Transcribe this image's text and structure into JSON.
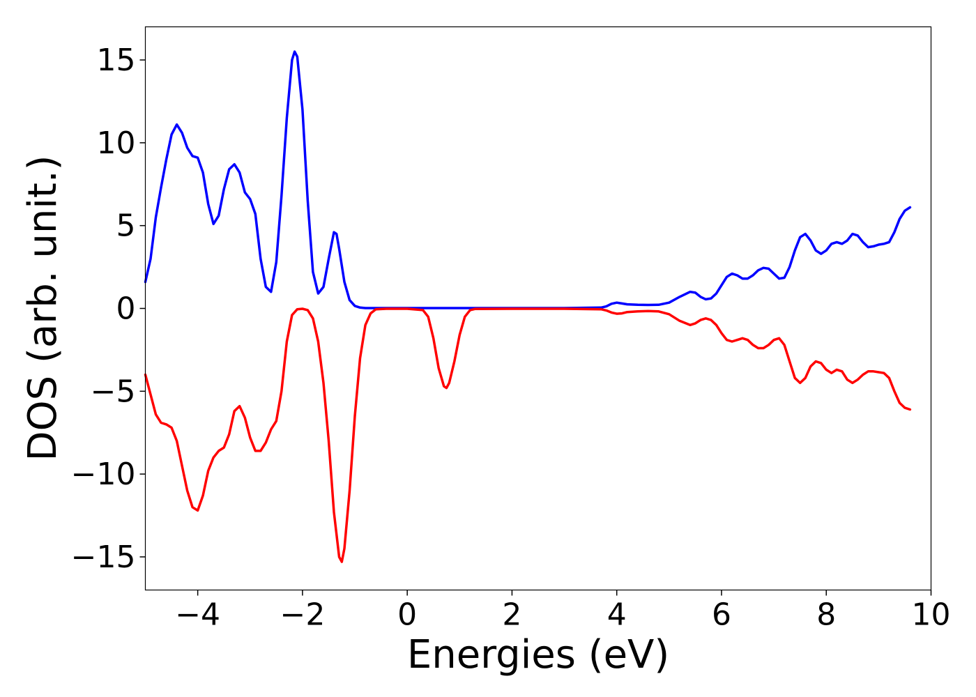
{
  "chart_data": {
    "type": "line",
    "title": "",
    "xlabel": "Energies (eV)",
    "ylabel": "DOS (arb. unit.)",
    "xlim": [
      -5,
      10
    ],
    "ylim": [
      -17,
      17
    ],
    "xticks": [
      -4,
      -2,
      0,
      2,
      4,
      6,
      8,
      10
    ],
    "xtick_labels": [
      "−4",
      "−2",
      "0",
      "2",
      "4",
      "6",
      "8",
      "10"
    ],
    "yticks": [
      -15,
      -10,
      -5,
      0,
      5,
      10,
      15
    ],
    "ytick_labels": [
      "−15",
      "−10",
      "−5",
      "0",
      "5",
      "10",
      "15"
    ],
    "grid": false,
    "legend": "none",
    "series": [
      {
        "color": "#0000ff",
        "points": [
          [
            -5.0,
            1.6
          ],
          [
            -4.9,
            3.0
          ],
          [
            -4.8,
            5.5
          ],
          [
            -4.7,
            7.3
          ],
          [
            -4.6,
            9.0
          ],
          [
            -4.5,
            10.5
          ],
          [
            -4.4,
            11.1
          ],
          [
            -4.3,
            10.6
          ],
          [
            -4.2,
            9.7
          ],
          [
            -4.1,
            9.2
          ],
          [
            -4.0,
            9.1
          ],
          [
            -3.9,
            8.2
          ],
          [
            -3.8,
            6.3
          ],
          [
            -3.7,
            5.1
          ],
          [
            -3.6,
            5.6
          ],
          [
            -3.5,
            7.2
          ],
          [
            -3.4,
            8.4
          ],
          [
            -3.3,
            8.7
          ],
          [
            -3.2,
            8.2
          ],
          [
            -3.1,
            7.0
          ],
          [
            -3.0,
            6.6
          ],
          [
            -2.9,
            5.7
          ],
          [
            -2.8,
            3.0
          ],
          [
            -2.7,
            1.3
          ],
          [
            -2.6,
            1.0
          ],
          [
            -2.5,
            2.8
          ],
          [
            -2.4,
            6.8
          ],
          [
            -2.3,
            11.5
          ],
          [
            -2.2,
            15.0
          ],
          [
            -2.15,
            15.5
          ],
          [
            -2.1,
            15.2
          ],
          [
            -2.0,
            12.0
          ],
          [
            -1.9,
            6.5
          ],
          [
            -1.8,
            2.2
          ],
          [
            -1.7,
            0.9
          ],
          [
            -1.6,
            1.3
          ],
          [
            -1.5,
            3.0
          ],
          [
            -1.4,
            4.6
          ],
          [
            -1.35,
            4.5
          ],
          [
            -1.3,
            3.6
          ],
          [
            -1.2,
            1.6
          ],
          [
            -1.1,
            0.5
          ],
          [
            -1.0,
            0.15
          ],
          [
            -0.9,
            0.05
          ],
          [
            -0.8,
            0.02
          ],
          [
            -0.5,
            0.02
          ],
          [
            0,
            0.02
          ],
          [
            1.0,
            0.02
          ],
          [
            2.0,
            0.02
          ],
          [
            3.0,
            0.02
          ],
          [
            3.7,
            0.05
          ],
          [
            3.8,
            0.12
          ],
          [
            3.9,
            0.28
          ],
          [
            4.0,
            0.35
          ],
          [
            4.1,
            0.3
          ],
          [
            4.2,
            0.25
          ],
          [
            4.4,
            0.22
          ],
          [
            4.6,
            0.21
          ],
          [
            4.8,
            0.22
          ],
          [
            5.0,
            0.35
          ],
          [
            5.2,
            0.7
          ],
          [
            5.4,
            1.0
          ],
          [
            5.5,
            0.95
          ],
          [
            5.6,
            0.7
          ],
          [
            5.7,
            0.55
          ],
          [
            5.8,
            0.6
          ],
          [
            5.9,
            0.9
          ],
          [
            6.0,
            1.4
          ],
          [
            6.1,
            1.9
          ],
          [
            6.2,
            2.1
          ],
          [
            6.3,
            2.0
          ],
          [
            6.4,
            1.8
          ],
          [
            6.5,
            1.8
          ],
          [
            6.6,
            2.0
          ],
          [
            6.7,
            2.3
          ],
          [
            6.8,
            2.45
          ],
          [
            6.9,
            2.4
          ],
          [
            7.0,
            2.1
          ],
          [
            7.1,
            1.8
          ],
          [
            7.2,
            1.85
          ],
          [
            7.3,
            2.5
          ],
          [
            7.4,
            3.5
          ],
          [
            7.5,
            4.3
          ],
          [
            7.6,
            4.5
          ],
          [
            7.7,
            4.1
          ],
          [
            7.8,
            3.5
          ],
          [
            7.9,
            3.3
          ],
          [
            8.0,
            3.5
          ],
          [
            8.1,
            3.9
          ],
          [
            8.2,
            4.0
          ],
          [
            8.3,
            3.9
          ],
          [
            8.4,
            4.1
          ],
          [
            8.5,
            4.5
          ],
          [
            8.6,
            4.4
          ],
          [
            8.7,
            4.0
          ],
          [
            8.8,
            3.7
          ],
          [
            8.9,
            3.75
          ],
          [
            9.0,
            3.85
          ],
          [
            9.1,
            3.9
          ],
          [
            9.2,
            4.0
          ],
          [
            9.3,
            4.6
          ],
          [
            9.4,
            5.4
          ],
          [
            9.5,
            5.9
          ],
          [
            9.6,
            6.1
          ]
        ]
      },
      {
        "color": "#ff0000",
        "points": [
          [
            -5.0,
            -4.0
          ],
          [
            -4.9,
            -5.2
          ],
          [
            -4.8,
            -6.4
          ],
          [
            -4.7,
            -6.9
          ],
          [
            -4.6,
            -7.0
          ],
          [
            -4.5,
            -7.2
          ],
          [
            -4.4,
            -8.0
          ],
          [
            -4.3,
            -9.5
          ],
          [
            -4.2,
            -11.0
          ],
          [
            -4.1,
            -12.0
          ],
          [
            -4.0,
            -12.2
          ],
          [
            -3.9,
            -11.3
          ],
          [
            -3.8,
            -9.8
          ],
          [
            -3.7,
            -9.0
          ],
          [
            -3.6,
            -8.6
          ],
          [
            -3.5,
            -8.4
          ],
          [
            -3.4,
            -7.6
          ],
          [
            -3.3,
            -6.2
          ],
          [
            -3.2,
            -5.9
          ],
          [
            -3.1,
            -6.6
          ],
          [
            -3.0,
            -7.8
          ],
          [
            -2.9,
            -8.6
          ],
          [
            -2.8,
            -8.6
          ],
          [
            -2.7,
            -8.1
          ],
          [
            -2.6,
            -7.3
          ],
          [
            -2.5,
            -6.8
          ],
          [
            -2.4,
            -5.0
          ],
          [
            -2.3,
            -2.0
          ],
          [
            -2.2,
            -0.4
          ],
          [
            -2.1,
            -0.05
          ],
          [
            -2.0,
            -0.02
          ],
          [
            -1.9,
            -0.1
          ],
          [
            -1.8,
            -0.6
          ],
          [
            -1.7,
            -2.0
          ],
          [
            -1.6,
            -4.5
          ],
          [
            -1.5,
            -8.0
          ],
          [
            -1.4,
            -12.3
          ],
          [
            -1.3,
            -15.0
          ],
          [
            -1.25,
            -15.3
          ],
          [
            -1.2,
            -14.5
          ],
          [
            -1.1,
            -11.0
          ],
          [
            -1.0,
            -6.5
          ],
          [
            -0.9,
            -3.0
          ],
          [
            -0.8,
            -1.0
          ],
          [
            -0.7,
            -0.3
          ],
          [
            -0.6,
            -0.05
          ],
          [
            -0.4,
            -0.02
          ],
          [
            0,
            -0.02
          ],
          [
            0.3,
            -0.1
          ],
          [
            0.4,
            -0.5
          ],
          [
            0.5,
            -1.8
          ],
          [
            0.6,
            -3.6
          ],
          [
            0.7,
            -4.7
          ],
          [
            0.75,
            -4.8
          ],
          [
            0.8,
            -4.5
          ],
          [
            0.9,
            -3.2
          ],
          [
            1.0,
            -1.6
          ],
          [
            1.1,
            -0.5
          ],
          [
            1.2,
            -0.1
          ],
          [
            1.3,
            -0.03
          ],
          [
            2.0,
            -0.02
          ],
          [
            3.0,
            -0.02
          ],
          [
            3.7,
            -0.05
          ],
          [
            3.8,
            -0.12
          ],
          [
            3.9,
            -0.25
          ],
          [
            4.0,
            -0.32
          ],
          [
            4.1,
            -0.3
          ],
          [
            4.2,
            -0.22
          ],
          [
            4.4,
            -0.18
          ],
          [
            4.6,
            -0.16
          ],
          [
            4.8,
            -0.18
          ],
          [
            5.0,
            -0.35
          ],
          [
            5.2,
            -0.75
          ],
          [
            5.4,
            -1.0
          ],
          [
            5.5,
            -0.9
          ],
          [
            5.6,
            -0.7
          ],
          [
            5.7,
            -0.6
          ],
          [
            5.8,
            -0.7
          ],
          [
            5.9,
            -1.0
          ],
          [
            6.0,
            -1.5
          ],
          [
            6.1,
            -1.9
          ],
          [
            6.2,
            -2.0
          ],
          [
            6.3,
            -1.9
          ],
          [
            6.4,
            -1.8
          ],
          [
            6.5,
            -1.9
          ],
          [
            6.6,
            -2.2
          ],
          [
            6.7,
            -2.4
          ],
          [
            6.8,
            -2.4
          ],
          [
            6.9,
            -2.2
          ],
          [
            7.0,
            -1.9
          ],
          [
            7.1,
            -1.8
          ],
          [
            7.2,
            -2.2
          ],
          [
            7.3,
            -3.2
          ],
          [
            7.4,
            -4.2
          ],
          [
            7.5,
            -4.5
          ],
          [
            7.6,
            -4.2
          ],
          [
            7.7,
            -3.5
          ],
          [
            7.8,
            -3.2
          ],
          [
            7.9,
            -3.3
          ],
          [
            8.0,
            -3.7
          ],
          [
            8.1,
            -3.9
          ],
          [
            8.2,
            -3.7
          ],
          [
            8.3,
            -3.8
          ],
          [
            8.4,
            -4.3
          ],
          [
            8.5,
            -4.5
          ],
          [
            8.6,
            -4.3
          ],
          [
            8.7,
            -4.0
          ],
          [
            8.8,
            -3.8
          ],
          [
            8.9,
            -3.8
          ],
          [
            9.0,
            -3.85
          ],
          [
            9.1,
            -3.9
          ],
          [
            9.2,
            -4.2
          ],
          [
            9.3,
            -5.0
          ],
          [
            9.4,
            -5.7
          ],
          [
            9.5,
            -6.0
          ],
          [
            9.6,
            -6.1
          ]
        ]
      }
    ]
  }
}
